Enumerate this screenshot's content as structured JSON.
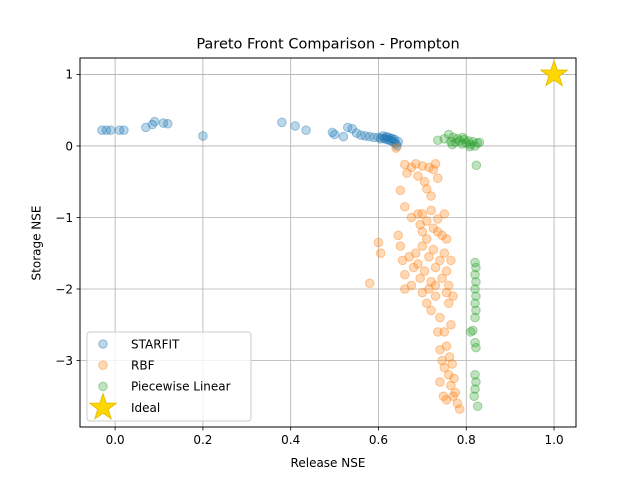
{
  "chart_data": {
    "type": "scatter",
    "title": "Pareto Front Comparison - Prompton",
    "xlabel": "Release NSE",
    "ylabel": "Storage NSE",
    "xlim": [
      -0.08,
      1.05
    ],
    "ylim": [
      -3.93,
      1.23
    ],
    "xticks": [
      {
        "value": 0.0,
        "label": "0.0"
      },
      {
        "value": 0.2,
        "label": "0.2"
      },
      {
        "value": 0.4,
        "label": "0.4"
      },
      {
        "value": 0.6,
        "label": "0.6"
      },
      {
        "value": 0.8,
        "label": "0.8"
      },
      {
        "value": 1.0,
        "label": "1.0"
      }
    ],
    "yticks": [
      {
        "value": 1,
        "label": "1"
      },
      {
        "value": 0,
        "label": "0"
      },
      {
        "value": -1,
        "label": "−1"
      },
      {
        "value": -2,
        "label": "−2"
      },
      {
        "value": -3,
        "label": "−3"
      }
    ],
    "grid": true,
    "legend_position": "lower-left",
    "series": [
      {
        "name": "STARFIT",
        "color": "#1f77b4",
        "alpha": 0.3,
        "marker": "circle",
        "points": [
          [
            -0.03,
            0.22
          ],
          [
            -0.02,
            0.22
          ],
          [
            -0.01,
            0.22
          ],
          [
            0.01,
            0.22
          ],
          [
            0.02,
            0.22
          ],
          [
            0.07,
            0.26
          ],
          [
            0.085,
            0.3
          ],
          [
            0.09,
            0.34
          ],
          [
            0.11,
            0.32
          ],
          [
            0.12,
            0.31
          ],
          [
            0.2,
            0.14
          ],
          [
            0.38,
            0.33
          ],
          [
            0.41,
            0.28
          ],
          [
            0.435,
            0.22
          ],
          [
            0.495,
            0.19
          ],
          [
            0.5,
            0.16
          ],
          [
            0.52,
            0.13
          ],
          [
            0.53,
            0.26
          ],
          [
            0.54,
            0.24
          ],
          [
            0.55,
            0.18
          ],
          [
            0.56,
            0.15
          ],
          [
            0.57,
            0.14
          ],
          [
            0.58,
            0.13
          ],
          [
            0.59,
            0.12
          ],
          [
            0.6,
            0.12
          ],
          [
            0.605,
            0.1
          ],
          [
            0.61,
            0.14
          ],
          [
            0.612,
            0.11
          ],
          [
            0.615,
            0.1
          ],
          [
            0.618,
            0.13
          ],
          [
            0.62,
            0.09
          ],
          [
            0.622,
            0.12
          ],
          [
            0.625,
            0.08
          ],
          [
            0.628,
            0.11
          ],
          [
            0.63,
            0.07
          ],
          [
            0.632,
            0.1
          ],
          [
            0.635,
            0.05
          ],
          [
            0.637,
            0.09
          ],
          [
            0.64,
            0.03
          ],
          [
            0.642,
            0.0
          ],
          [
            0.645,
            0.06
          ]
        ]
      },
      {
        "name": "RBF",
        "color": "#ff7f0e",
        "alpha": 0.3,
        "marker": "circle",
        "points": [
          [
            0.64,
            -0.03
          ],
          [
            0.66,
            -0.26
          ],
          [
            0.665,
            -0.38
          ],
          [
            0.675,
            -0.3
          ],
          [
            0.685,
            -0.25
          ],
          [
            0.69,
            -0.42
          ],
          [
            0.7,
            -0.28
          ],
          [
            0.715,
            -0.3
          ],
          [
            0.725,
            -0.33
          ],
          [
            0.73,
            -0.25
          ],
          [
            0.71,
            -0.6
          ],
          [
            0.705,
            -0.5
          ],
          [
            0.735,
            -0.45
          ],
          [
            0.72,
            -0.7
          ],
          [
            0.65,
            -0.62
          ],
          [
            0.66,
            -0.85
          ],
          [
            0.675,
            -1.0
          ],
          [
            0.69,
            -0.95
          ],
          [
            0.695,
            -1.1
          ],
          [
            0.7,
            -1.2
          ],
          [
            0.7,
            -0.95
          ],
          [
            0.72,
            -0.9
          ],
          [
            0.735,
            -1.02
          ],
          [
            0.75,
            -0.95
          ],
          [
            0.755,
            -1.3
          ],
          [
            0.6,
            -1.35
          ],
          [
            0.605,
            -1.5
          ],
          [
            0.645,
            -1.25
          ],
          [
            0.65,
            -1.4
          ],
          [
            0.655,
            -1.6
          ],
          [
            0.66,
            -1.8
          ],
          [
            0.67,
            -1.55
          ],
          [
            0.675,
            -1.95
          ],
          [
            0.68,
            -1.7
          ],
          [
            0.685,
            -1.5
          ],
          [
            0.69,
            -1.65
          ],
          [
            0.695,
            -1.85
          ],
          [
            0.7,
            -1.4
          ],
          [
            0.705,
            -1.75
          ],
          [
            0.71,
            -1.3
          ],
          [
            0.715,
            -1.55
          ],
          [
            0.72,
            -1.9
          ],
          [
            0.725,
            -1.45
          ],
          [
            0.73,
            -1.7
          ],
          [
            0.735,
            -1.2
          ],
          [
            0.74,
            -1.6
          ],
          [
            0.745,
            -1.85
          ],
          [
            0.75,
            -1.5
          ],
          [
            0.755,
            -1.75
          ],
          [
            0.76,
            -1.95
          ],
          [
            0.765,
            -1.6
          ],
          [
            0.77,
            -2.1
          ],
          [
            0.58,
            -1.92
          ],
          [
            0.66,
            -2.0
          ],
          [
            0.7,
            -2.05
          ],
          [
            0.71,
            -2.2
          ],
          [
            0.72,
            -2.3
          ],
          [
            0.73,
            -2.1
          ],
          [
            0.74,
            -2.4
          ],
          [
            0.75,
            -2.6
          ],
          [
            0.76,
            -2.2
          ],
          [
            0.765,
            -2.5
          ],
          [
            0.735,
            -2.6
          ],
          [
            0.74,
            -2.85
          ],
          [
            0.745,
            -3.0
          ],
          [
            0.75,
            -3.1
          ],
          [
            0.755,
            -2.8
          ],
          [
            0.76,
            -3.2
          ],
          [
            0.765,
            -3.35
          ],
          [
            0.77,
            -3.5
          ],
          [
            0.775,
            -3.45
          ],
          [
            0.78,
            -3.6
          ],
          [
            0.785,
            -3.68
          ],
          [
            0.74,
            -3.3
          ],
          [
            0.748,
            -3.5
          ],
          [
            0.755,
            -3.55
          ],
          [
            0.762,
            -2.95
          ],
          [
            0.768,
            -3.05
          ],
          [
            0.772,
            -3.25
          ],
          [
            0.71,
            -1.05
          ],
          [
            0.725,
            -1.15
          ],
          [
            0.745,
            -1.25
          ],
          [
            0.715,
            -2.0
          ],
          [
            0.73,
            -1.95
          ],
          [
            0.755,
            -2.05
          ]
        ]
      },
      {
        "name": "Piecewise Linear",
        "color": "#2ca02c",
        "alpha": 0.3,
        "marker": "circle",
        "points": [
          [
            0.735,
            0.08
          ],
          [
            0.75,
            0.1
          ],
          [
            0.76,
            0.16
          ],
          [
            0.765,
            0.06
          ],
          [
            0.77,
            0.12
          ],
          [
            0.775,
            0.05
          ],
          [
            0.78,
            0.1
          ],
          [
            0.785,
            0.07
          ],
          [
            0.79,
            0.03
          ],
          [
            0.795,
            0.09
          ],
          [
            0.8,
            0.04
          ],
          [
            0.805,
            0.07
          ],
          [
            0.81,
            0.02
          ],
          [
            0.815,
            0.06
          ],
          [
            0.82,
            0.0
          ],
          [
            0.825,
            0.04
          ],
          [
            0.83,
            0.05
          ],
          [
            0.768,
            0.02
          ],
          [
            0.792,
            0.12
          ],
          [
            0.808,
            -0.01
          ],
          [
            0.823,
            -0.27
          ],
          [
            0.82,
            -1.63
          ],
          [
            0.822,
            -1.7
          ],
          [
            0.82,
            -1.8
          ],
          [
            0.822,
            -1.9
          ],
          [
            0.82,
            -2.0
          ],
          [
            0.822,
            -2.1
          ],
          [
            0.82,
            -2.2
          ],
          [
            0.822,
            -2.3
          ],
          [
            0.82,
            -2.4
          ],
          [
            0.815,
            -2.58
          ],
          [
            0.81,
            -2.6
          ],
          [
            0.82,
            -2.75
          ],
          [
            0.822,
            -2.82
          ],
          [
            0.82,
            -3.2
          ],
          [
            0.822,
            -3.3
          ],
          [
            0.82,
            -3.4
          ],
          [
            0.818,
            -3.5
          ],
          [
            0.826,
            -3.64
          ]
        ]
      },
      {
        "name": "Ideal",
        "color": "#ffd700",
        "marker": "star",
        "points": [
          [
            1.0,
            1.0
          ]
        ]
      }
    ]
  }
}
